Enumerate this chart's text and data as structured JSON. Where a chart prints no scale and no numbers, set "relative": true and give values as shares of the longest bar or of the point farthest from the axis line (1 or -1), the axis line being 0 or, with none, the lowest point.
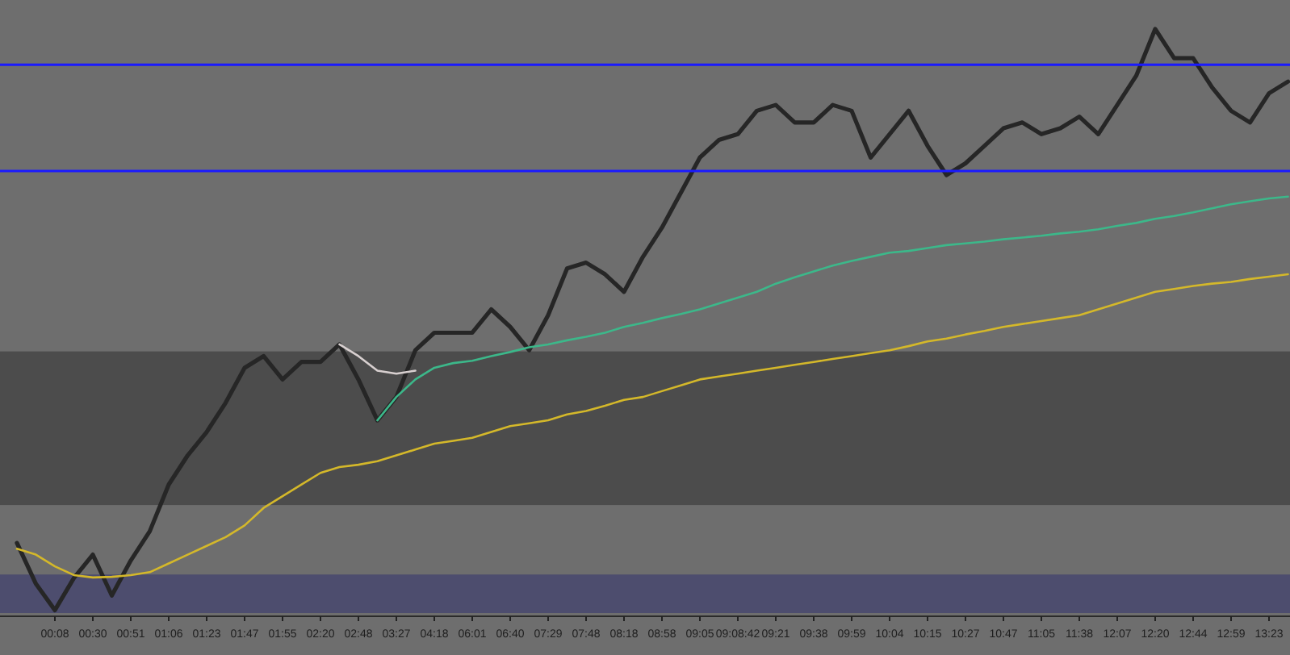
{
  "chart_data": {
    "type": "line",
    "relative": true,
    "tick_labels": "x",
    "categories": [
      null,
      null,
      "00:08",
      null,
      "00:30",
      null,
      "00:51",
      null,
      "01:06",
      null,
      "01:23",
      null,
      "01:47",
      null,
      "01:55",
      null,
      "02:20",
      null,
      "02:48",
      null,
      "03:27",
      null,
      "04:18",
      null,
      "06:01",
      null,
      "06:40",
      null,
      "07:29",
      null,
      "07:48",
      null,
      "08:18",
      null,
      "08:58",
      null,
      "09:05",
      null,
      "09:08:42",
      null,
      "09:21",
      null,
      "09:38",
      null,
      "09:59",
      null,
      "10:04",
      null,
      "10:15",
      null,
      "10:27",
      null,
      "10:47",
      null,
      "11:05",
      null,
      "11:38",
      null,
      "12:07",
      null,
      "12:20",
      null,
      "12:44",
      null,
      "12:59",
      null,
      "13:23",
      null
    ],
    "bands": [
      {
        "axis": "y",
        "from": 0.185,
        "to": 0.448,
        "color": "#4c4c4c"
      },
      {
        "axis": "y",
        "from": 0,
        "to": 0.066,
        "color": "#4d4d6e"
      }
    ],
    "ref_lines": [
      {
        "axis": "y",
        "value": 0.757,
        "color": "#1a1aff"
      },
      {
        "axis": "y",
        "value": 0.939,
        "color": "#1a1aff"
      }
    ],
    "series": [
      {
        "color": "#262626",
        "values": [
          0.12,
          0.05,
          0.005,
          0.06,
          0.1,
          0.03,
          0.09,
          0.14,
          0.22,
          0.27,
          0.31,
          0.36,
          0.42,
          0.44,
          0.4,
          0.43,
          0.43,
          0.46,
          0.4,
          0.33,
          0.37,
          0.45,
          0.48,
          0.48,
          0.48,
          0.52,
          0.49,
          0.45,
          0.51,
          0.59,
          0.6,
          0.58,
          0.55,
          0.61,
          0.66,
          0.72,
          0.78,
          0.81,
          0.82,
          0.86,
          0.87,
          0.84,
          0.84,
          0.87,
          0.86,
          0.78,
          0.82,
          0.86,
          0.8,
          0.75,
          0.77,
          0.8,
          0.83,
          0.84,
          0.82,
          0.83,
          0.85,
          0.82,
          0.87,
          0.92,
          1,
          0.95,
          0.95,
          0.9,
          0.86,
          0.84,
          0.89,
          0.91
        ]
      },
      {
        "color": "#d4b82a",
        "values": [
          0.11,
          0.1,
          0.08,
          0.065,
          0.061,
          0.062,
          0.065,
          0.07,
          0.085,
          0.1,
          0.115,
          0.13,
          0.15,
          0.18,
          0.2,
          0.22,
          0.24,
          0.25,
          0.254,
          0.26,
          0.27,
          0.28,
          0.29,
          0.295,
          0.3,
          0.31,
          0.32,
          0.325,
          0.33,
          0.34,
          0.346,
          0.355,
          0.365,
          0.37,
          0.38,
          0.39,
          0.4,
          0.405,
          0.41,
          0.415,
          0.42,
          0.425,
          0.43,
          0.435,
          0.44,
          0.445,
          0.45,
          0.457,
          0.465,
          0.47,
          0.477,
          0.483,
          0.49,
          0.495,
          0.5,
          0.505,
          0.51,
          0.52,
          0.53,
          0.54,
          0.55,
          0.555,
          0.56,
          0.564,
          0.567,
          0.572,
          0.576,
          0.58
        ]
      },
      {
        "color": "#d8d0d0",
        "values": [
          null,
          null,
          null,
          null,
          null,
          null,
          null,
          null,
          null,
          null,
          null,
          null,
          null,
          null,
          null,
          null,
          null,
          0.46,
          0.44,
          0.415,
          0.41,
          0.415,
          null,
          null,
          null,
          null,
          null,
          null,
          null,
          null,
          null,
          null,
          null,
          null,
          null,
          null,
          null,
          null,
          null,
          null,
          null,
          null,
          null,
          null,
          null,
          null,
          null,
          null,
          null,
          null,
          null,
          null,
          null,
          null,
          null,
          null,
          null,
          null,
          null,
          null,
          null,
          null,
          null,
          null,
          null,
          null,
          null,
          null
        ]
      },
      {
        "color": "#3cb88a",
        "values": [
          null,
          null,
          null,
          null,
          null,
          null,
          null,
          null,
          null,
          null,
          null,
          null,
          null,
          null,
          null,
          null,
          null,
          null,
          null,
          0.33,
          0.37,
          0.4,
          0.42,
          0.428,
          0.432,
          0.44,
          0.447,
          0.455,
          0.46,
          0.467,
          0.473,
          0.48,
          0.49,
          0.497,
          0.505,
          0.512,
          0.52,
          0.53,
          0.54,
          0.55,
          0.564,
          0.575,
          0.585,
          0.595,
          0.603,
          0.61,
          0.617,
          0.62,
          0.625,
          0.63,
          0.633,
          0.636,
          0.64,
          0.643,
          0.646,
          0.65,
          0.653,
          0.657,
          0.663,
          0.668,
          0.675,
          0.68,
          0.686,
          0.693,
          0.7,
          0.705,
          0.71,
          0.713
        ]
      }
    ]
  }
}
